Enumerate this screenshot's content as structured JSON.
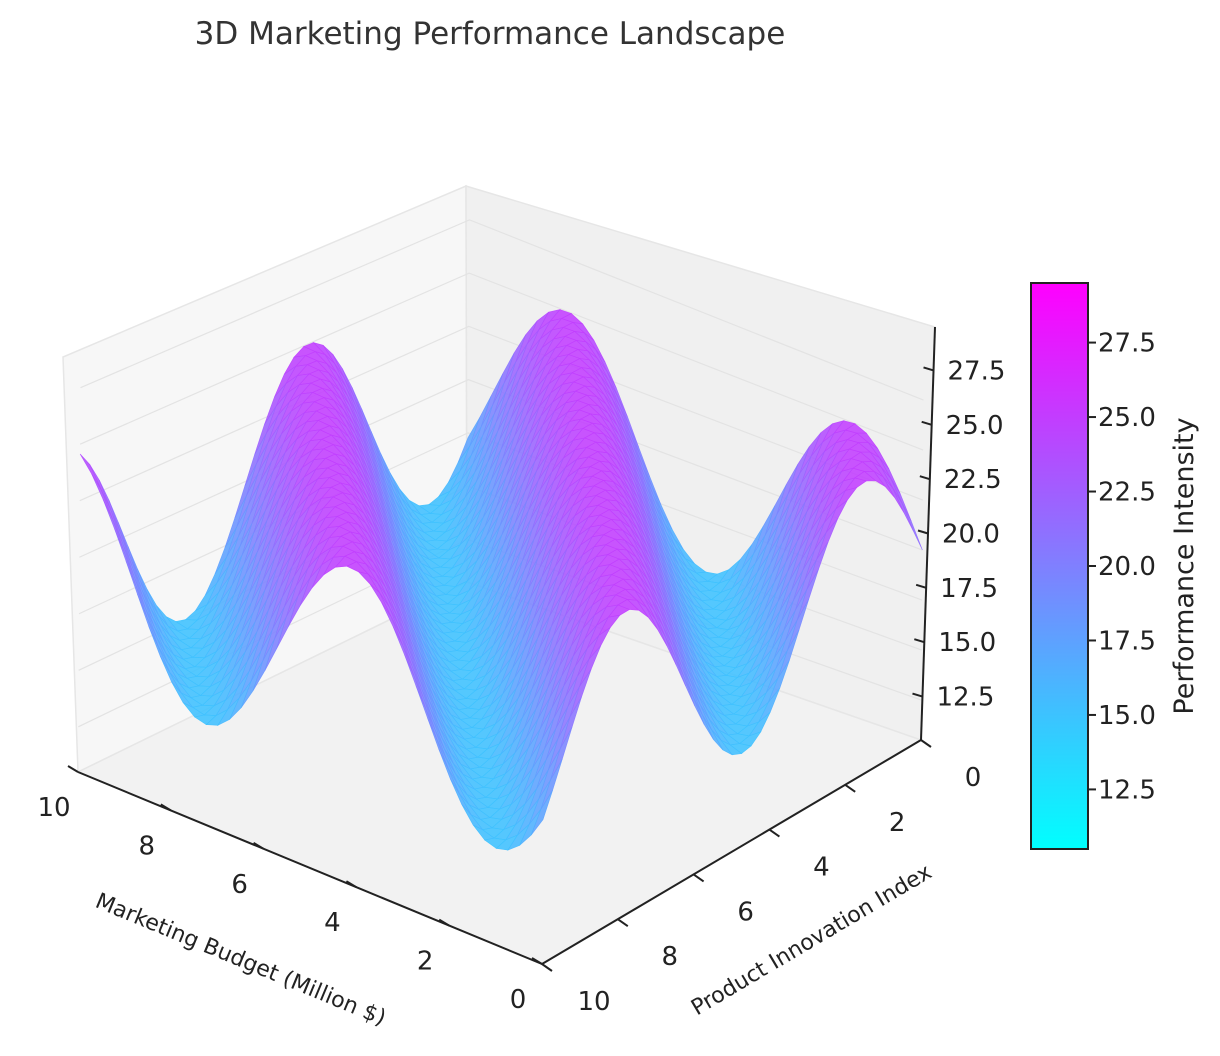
{
  "chart_data": {
    "type": "surface",
    "title": "3D Marketing Performance Landscape",
    "xlabel": "Marketing Budget (Million $)",
    "ylabel": "Product Innovation Index",
    "zlabel": "",
    "colorbar_label": "Performance Intensity",
    "colormap": [
      "#00ffff",
      "#ff00ff"
    ],
    "x_ticks": [
      0,
      2,
      4,
      6,
      8,
      10
    ],
    "y_ticks": [
      0,
      2,
      4,
      6,
      8,
      10
    ],
    "z_ticks": [
      "12.5",
      "15.0",
      "17.5",
      "20.0",
      "22.5",
      "25.0",
      "27.5"
    ],
    "colorbar_ticks": [
      "12.5",
      "15.0",
      "17.5",
      "20.0",
      "22.5",
      "25.0",
      "27.5"
    ],
    "xlim": [
      0,
      10
    ],
    "ylim": [
      0,
      10
    ],
    "zlim": [
      10.5,
      29.5
    ],
    "surface": {
      "formula": "z = 20 + 5*sin(x)*cos(y) + 5*sin(y)*cos(x)",
      "x_range": [
        0,
        10
      ],
      "y_range": [
        0,
        10
      ],
      "z_min": 10.5,
      "z_max": 29.5
    },
    "grid": true
  }
}
